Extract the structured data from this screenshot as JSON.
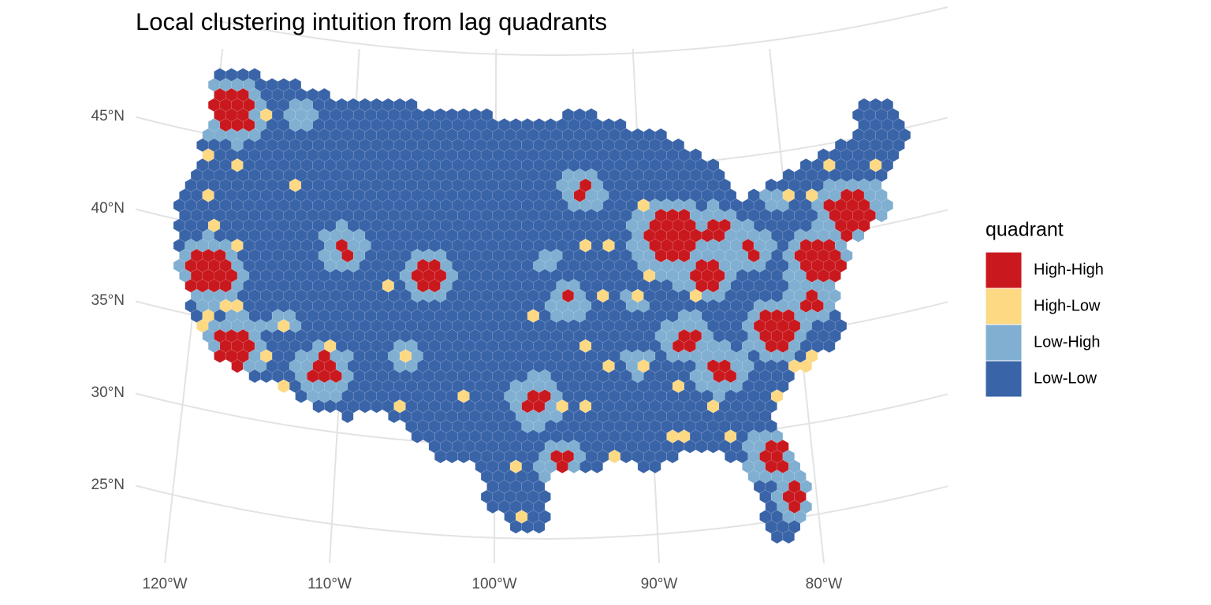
{
  "title": "Local clustering intuition from lag quadrants",
  "legend": {
    "title": "quadrant",
    "entries": [
      {
        "label": "High-High",
        "color": "#c9191e"
      },
      {
        "label": "High-Low",
        "color": "#fdd984"
      },
      {
        "label": "Low-High",
        "color": "#80afd1"
      },
      {
        "label": "Low-Low",
        "color": "#3a64a8"
      }
    ]
  },
  "axes": {
    "lat_ticks": [
      {
        "value": 45,
        "label": "45°N"
      },
      {
        "value": 40,
        "label": "40°N"
      },
      {
        "value": 35,
        "label": "35°N"
      },
      {
        "value": 30,
        "label": "30°N"
      },
      {
        "value": 25,
        "label": "25°N"
      }
    ],
    "lon_ticks": [
      {
        "value": -120,
        "label": "120°W"
      },
      {
        "value": -110,
        "label": "110°W"
      },
      {
        "value": -100,
        "label": "100°W"
      },
      {
        "value": -90,
        "label": "90°W"
      },
      {
        "value": -80,
        "label": "80°W"
      }
    ]
  }
}
